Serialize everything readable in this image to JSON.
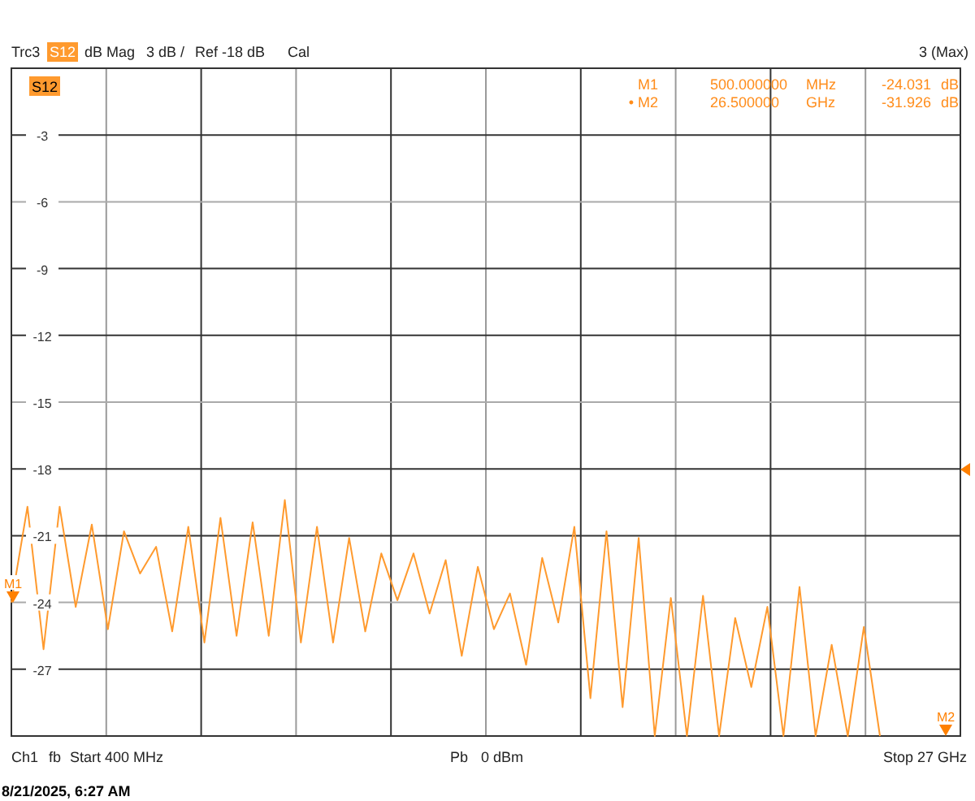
{
  "chart_data": {
    "type": "line",
    "annotations": [
      "Trc3",
      "dB Mag",
      "3 dB /",
      "Ref -18 dB",
      "Cal",
      "3 (Max)",
      "Ch1",
      "fb",
      "Start 400 MHz",
      "Pb",
      "0 dBm",
      "Stop 27 GHz",
      "8/21/2025, 6:27 AM",
      "M1",
      "500.000000",
      "MHz",
      "-24.031",
      "dB",
      "• M2",
      "26.500000",
      "GHz",
      "-31.926",
      "dB",
      "M1",
      "M2"
    ],
    "categories": [
      null,
      null,
      null,
      null,
      null,
      null,
      null,
      null,
      null,
      null,
      null,
      null,
      null,
      null,
      null,
      null,
      null,
      null,
      null,
      null,
      null,
      null,
      null,
      null,
      null,
      null,
      null,
      null,
      null,
      null,
      null,
      null,
      null,
      null,
      null,
      null,
      null,
      null,
      null,
      null,
      null,
      null,
      null,
      null,
      null,
      null,
      null,
      null,
      null,
      null,
      null,
      null,
      null,
      null,
      null,
      null,
      null,
      null,
      null,
      null
    ],
    "ylim": [
      -30,
      0
    ],
    "yticks": [
      {
        "value": 0,
        "label": null
      },
      -3,
      -6,
      -9,
      -12,
      -15,
      -18,
      -21,
      -24,
      -27,
      {
        "value": -30,
        "label": null
      }
    ],
    "tick_labels": "y",
    "grid": true,
    "legend": "top left",
    "line_style": "solid",
    "series": [
      {
        "name": "S12",
        "color": "#ff9a2e",
        "values": [
          -24.0,
          -19.7,
          -26.1,
          -19.7,
          -24.2,
          -20.5,
          -25.2,
          -20.8,
          -22.7,
          -21.5,
          -25.3,
          -20.6,
          -25.8,
          -20.2,
          -25.5,
          -20.4,
          -25.5,
          -19.4,
          -25.8,
          -20.6,
          -25.8,
          -21.1,
          -25.3,
          -21.8,
          -23.9,
          -21.8,
          -24.5,
          -22.1,
          -26.4,
          -22.4,
          -25.2,
          -23.6,
          -26.8,
          -22.0,
          -24.9,
          -20.6,
          -28.3,
          -20.8,
          -28.7,
          -21.1,
          -30,
          -23.8,
          -30,
          -23.7,
          -30,
          -24.7,
          -27.8,
          -24.2,
          -30,
          -23.3,
          -30,
          -25.9,
          -30,
          -25.1,
          -30,
          null,
          null,
          null,
          null,
          null
        ]
      }
    ]
  }
}
